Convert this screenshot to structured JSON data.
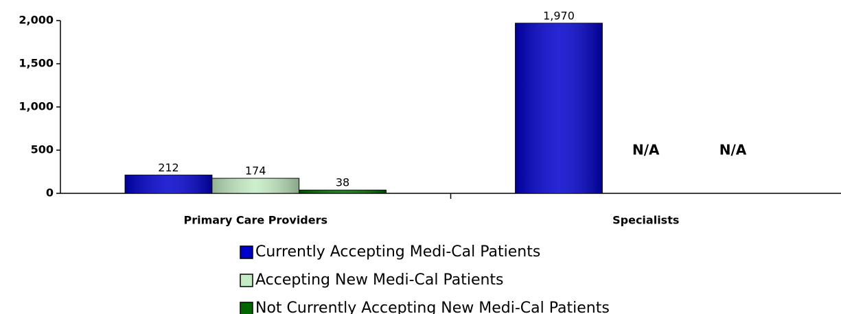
{
  "chart_data": {
    "type": "bar",
    "categories": [
      "Primary Care Providers",
      "Specialists"
    ],
    "series": [
      {
        "name": "Currently Accepting Medi-Cal Patients",
        "color": "#0000cc",
        "values": [
          212,
          1970
        ],
        "value_labels": [
          "212",
          "1,970"
        ]
      },
      {
        "name": "Accepting New Medi-Cal Patients",
        "color": "#c4ecc4",
        "values": [
          174,
          null
        ],
        "value_labels": [
          "174",
          "N/A"
        ]
      },
      {
        "name": "Not Currently Accepting New Medi-Cal Patients",
        "color": "#006600",
        "values": [
          38,
          null
        ],
        "value_labels": [
          "38",
          "N/A"
        ]
      }
    ],
    "ylim": [
      0,
      2000
    ],
    "yticks": [
      0,
      500,
      {
        "value": 1000,
        "label": "1,000"
      },
      {
        "value": 1500,
        "label": "1,500"
      },
      {
        "value": 2000,
        "label": "2,000"
      }
    ],
    "grid": false
  }
}
